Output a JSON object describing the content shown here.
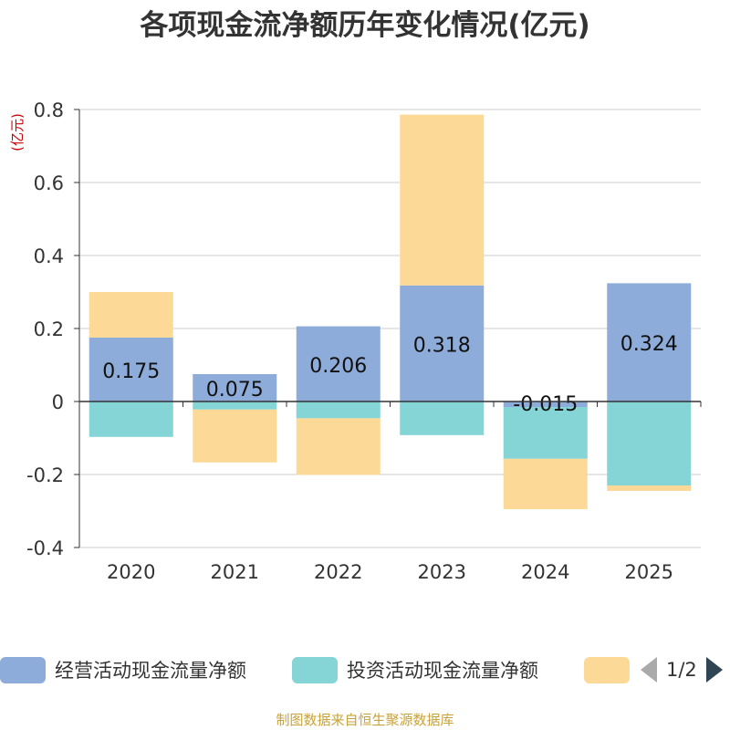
{
  "chart_data": {
    "type": "bar",
    "stacked": true,
    "title": "各项现金流净额历年变化情况(亿元)",
    "ylabel": "(亿元)",
    "xlabel": "",
    "ylim": [
      -0.4,
      0.8
    ],
    "yticks": [
      -0.4,
      -0.2,
      0,
      0.2,
      0.4,
      0.6,
      0.8
    ],
    "ytick_labels": [
      "-0.4",
      "-0.2",
      "0",
      "0.2",
      "0.4",
      "0.6",
      "0.8"
    ],
    "grid": true,
    "categories": [
      "2020",
      "2021",
      "2022",
      "2023",
      "2024",
      "2025"
    ],
    "series": [
      {
        "name": "经营活动现金流量净额",
        "color": "#8eacd9",
        "values": [
          0.175,
          0.075,
          0.206,
          0.318,
          -0.015,
          0.324
        ],
        "labels": [
          "0.175",
          "0.075",
          "0.206",
          "0.318",
          "-0.015",
          "0.324"
        ]
      },
      {
        "name": "投资活动现金流量净额",
        "color": "#85d4d6",
        "values": [
          -0.097,
          -0.022,
          -0.046,
          -0.092,
          -0.142,
          -0.23
        ]
      },
      {
        "name": "",
        "color": "#fdd998",
        "values": [
          0.125,
          -0.145,
          -0.155,
          0.468,
          -0.138,
          -0.015
        ]
      }
    ]
  },
  "legend": {
    "items": [
      {
        "label": "经营活动现金流量净额",
        "color": "#8eacd9"
      },
      {
        "label": "投资活动现金流量净额",
        "color": "#85d4d6"
      },
      {
        "label": "",
        "color": "#fdd998"
      }
    ],
    "page_indicator": "1/2"
  },
  "source": "制图数据来自恒生聚源数据库"
}
